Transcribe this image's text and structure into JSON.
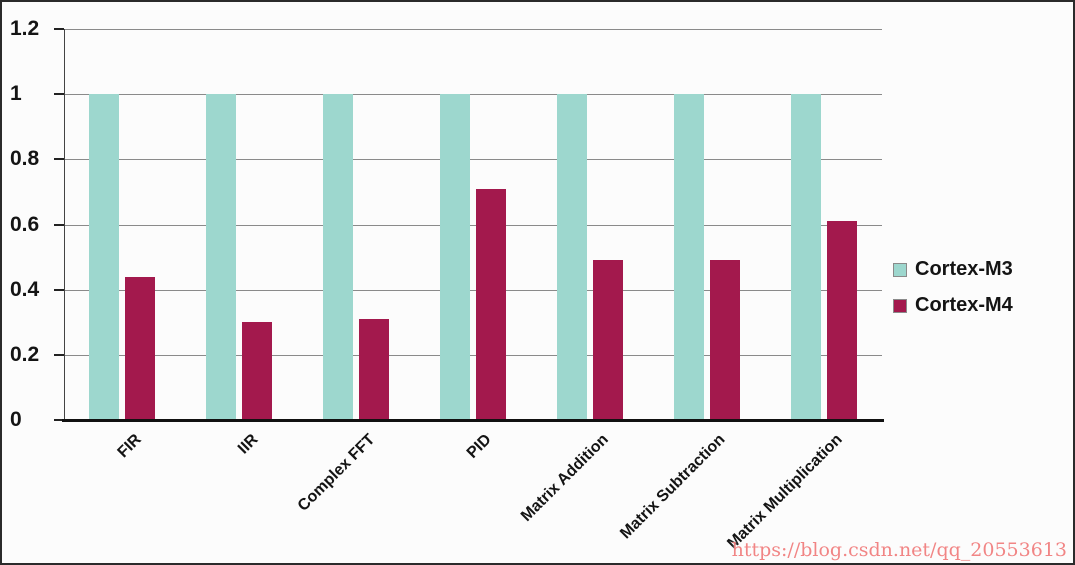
{
  "watermark": "https://blog.csdn.net/qq_20553613",
  "chart_data": {
    "type": "bar",
    "title": "",
    "xlabel": "",
    "ylabel": "",
    "categories": [
      "FIR",
      "IIR",
      "Complex FFT",
      "PID",
      "Matrix Addition",
      "Matrix Subtraction",
      "Matrix Multiplication"
    ],
    "series": [
      {
        "name": "Cortex-M3",
        "color": "#9dd7ce",
        "values": [
          1,
          1,
          1,
          1,
          1,
          1,
          1
        ]
      },
      {
        "name": "Cortex-M4",
        "color": "#a3194d",
        "values": [
          0.44,
          0.3,
          0.31,
          0.71,
          0.49,
          0.49,
          0.61
        ]
      }
    ],
    "ylim": [
      0,
      1.2
    ],
    "ytick_interval": 0.2,
    "yticks": [
      "1.2",
      "1",
      "0.8",
      "0.6",
      "0.4",
      "0.2",
      "0"
    ],
    "grid": true,
    "legend_position": "right"
  }
}
